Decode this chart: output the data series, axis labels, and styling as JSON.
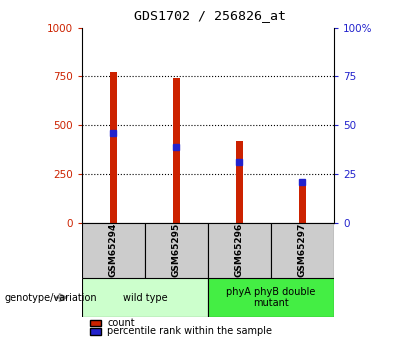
{
  "title": "GDS1702 / 256826_at",
  "samples": [
    "GSM65294",
    "GSM65295",
    "GSM65296",
    "GSM65297"
  ],
  "count_values": [
    770,
    740,
    420,
    215
  ],
  "percentile_values": [
    46,
    39,
    31,
    21
  ],
  "groups": [
    {
      "label": "wild type",
      "samples": [
        0,
        1
      ],
      "color": "#ccffcc"
    },
    {
      "label": "phyA phyB double\nmutant",
      "samples": [
        2,
        3
      ],
      "color": "#44ee44"
    }
  ],
  "ylim": [
    0,
    1000
  ],
  "right_ylim": [
    0,
    100
  ],
  "yticks_left": [
    0,
    250,
    500,
    750,
    1000
  ],
  "yticks_right": [
    0,
    25,
    50,
    75,
    100
  ],
  "bar_color": "#cc2200",
  "percentile_color": "#2222cc",
  "bar_width": 0.12,
  "background_color": "#ffffff",
  "plot_bg_color": "#ffffff",
  "left_tick_color": "#cc2200",
  "right_tick_color": "#2222cc",
  "genotype_label": "genotype/variation",
  "legend_count": "count",
  "legend_percentile": "percentile rank within the sample",
  "sample_bg": "#cccccc",
  "title_fontsize": 9.5,
  "tick_fontsize": 7.5
}
